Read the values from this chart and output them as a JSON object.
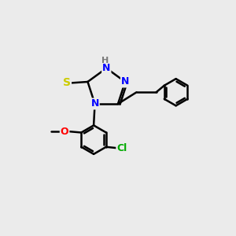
{
  "bg_color": "#ebebeb",
  "bond_color": "#000000",
  "line_width": 1.8,
  "atom_colors": {
    "N": "#0000ff",
    "S": "#cccc00",
    "O": "#ff0000",
    "Cl": "#00aa00",
    "H": "#7a7a7a",
    "C": "#000000"
  },
  "font_size": 9,
  "fig_size": [
    3.0,
    3.0
  ],
  "dpi": 100
}
